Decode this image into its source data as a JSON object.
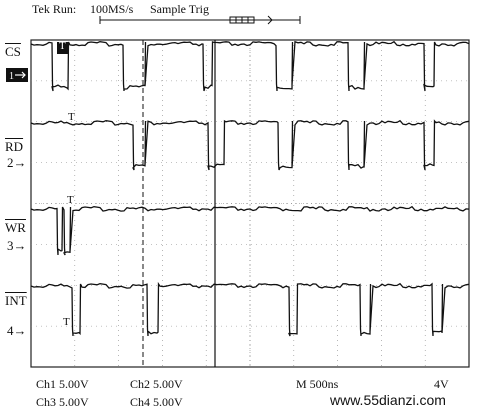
{
  "header": {
    "status": "Tek Run:",
    "sample_rate": "100MS/s",
    "acq_mode": "Sample Trig"
  },
  "channels": [
    {
      "name": "CS",
      "number": "1"
    },
    {
      "name": "RD",
      "number": "2"
    },
    {
      "name": "WR",
      "number": "3"
    },
    {
      "name": "INT",
      "number": "4"
    }
  ],
  "trigger_marker": "T",
  "footer": {
    "ch1": "Ch1  5.00V",
    "ch2": "Ch2  5.00V",
    "ch3": "Ch3  5.00V",
    "ch4": "Ch4  5.00V",
    "timebase": "M  500ns",
    "trigger_level": "4V"
  },
  "watermark": "www.55dianzi.com",
  "colors": {
    "trace": "#111111",
    "grid": "#555555",
    "background": "#ffffff"
  }
}
